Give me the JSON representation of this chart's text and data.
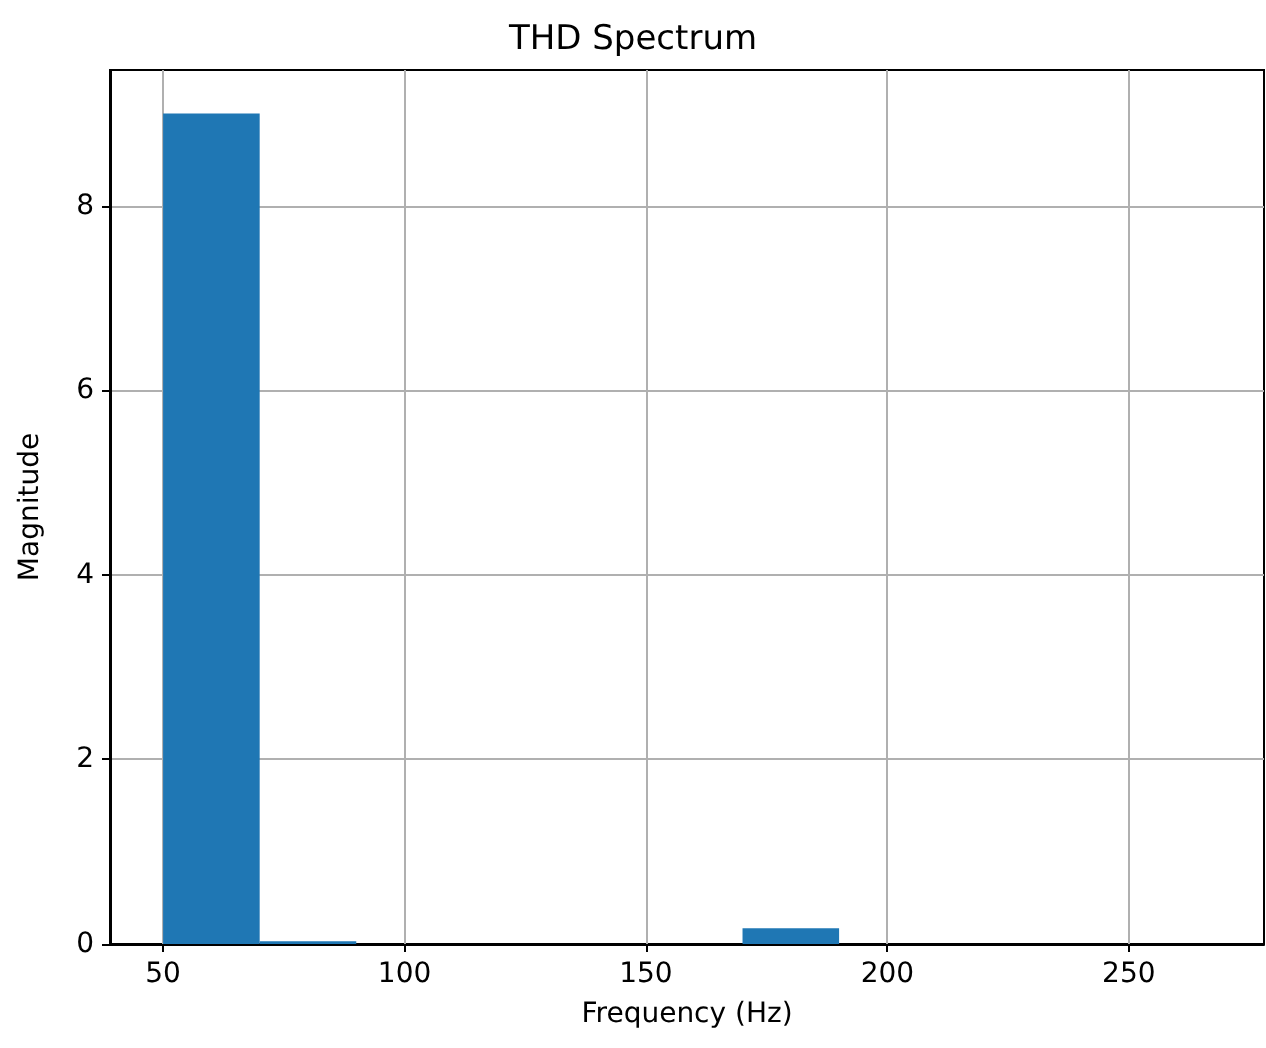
{
  "chart_data": {
    "type": "histogram",
    "title": "THD Spectrum",
    "xlabel": "Frequency (Hz)",
    "ylabel": "Magnitude",
    "bins": [
      50,
      70,
      90,
      110,
      130,
      150,
      170,
      190,
      210,
      230,
      250
    ],
    "values": [
      9,
      0.03,
      0,
      0,
      0,
      0,
      0.17,
      0,
      0,
      0
    ],
    "color": "#1f77b4",
    "xlim": [
      39,
      278
    ],
    "xticks": [
      50,
      100,
      150,
      200,
      250
    ],
    "ylim": [
      0,
      9.47
    ],
    "yticks": [
      0,
      2,
      4,
      6,
      8
    ],
    "grid": true
  }
}
